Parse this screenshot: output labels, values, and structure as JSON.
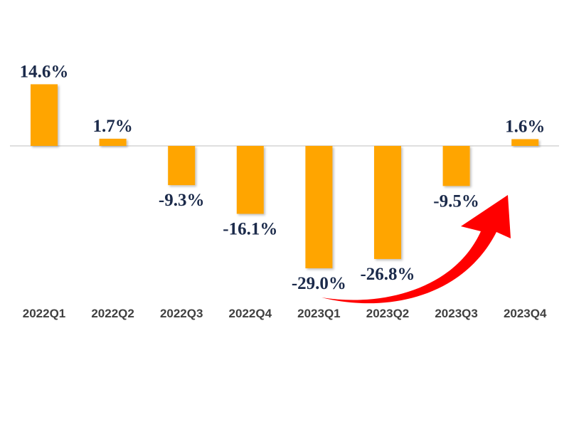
{
  "chart_data": {
    "type": "bar",
    "title": "",
    "xlabel": "",
    "ylabel": "",
    "categories": [
      "2022Q1",
      "2022Q2",
      "2022Q3",
      "2022Q4",
      "2023Q1",
      "2023Q2",
      "2023Q3",
      "2023Q4"
    ],
    "values": [
      14.6,
      1.7,
      -9.3,
      -16.1,
      -29.0,
      -26.8,
      -9.5,
      1.6
    ],
    "data_labels": [
      "14.6%",
      "1.7%",
      "-9.3%",
      "-16.1%",
      "-29.0%",
      "-26.8%",
      "-9.5%",
      "1.6%"
    ],
    "grid": false,
    "legend": "none",
    "bar_color": "#FFA500",
    "label_color": "#1b2a4a",
    "annotation": {
      "type": "curved-arrow",
      "from": "2023Q1",
      "to": "2023Q4",
      "color": "#FF0000"
    }
  }
}
